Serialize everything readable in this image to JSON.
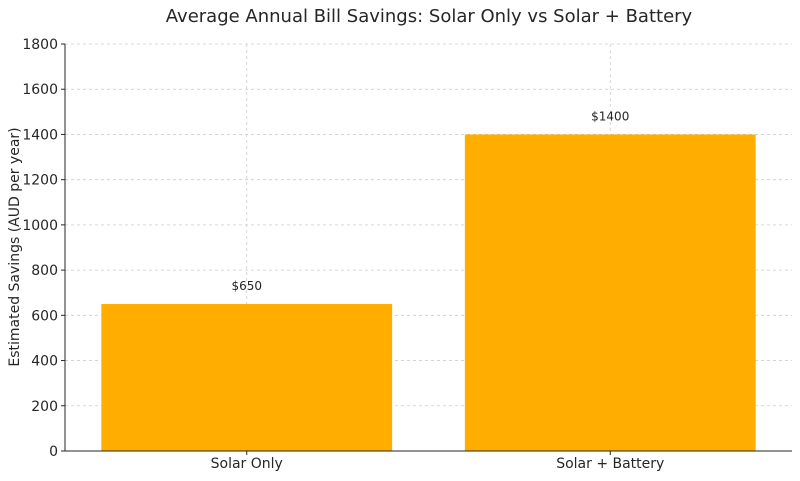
{
  "chart_data": {
    "type": "bar",
    "title": "Average Annual Bill Savings: Solar Only vs Solar + Battery",
    "xlabel": "",
    "ylabel": "Estimated Savings (AUD per year)",
    "categories": [
      "Solar Only",
      "Solar + Battery"
    ],
    "values": [
      650,
      1400
    ],
    "data_labels": [
      "$650",
      "$1400"
    ],
    "ylim": [
      0,
      1800
    ],
    "yticks": [
      0,
      200,
      400,
      600,
      800,
      1000,
      1200,
      1400,
      1600,
      1800
    ],
    "ytick_labels": [
      "0",
      "200",
      "400",
      "600",
      "800",
      "1000",
      "1200",
      "1400",
      "1600",
      "1800"
    ],
    "grid": true,
    "colors": {
      "bar": "#ffae00",
      "text": "#262626",
      "grid": "#cccccc",
      "axis": "#262626"
    }
  }
}
